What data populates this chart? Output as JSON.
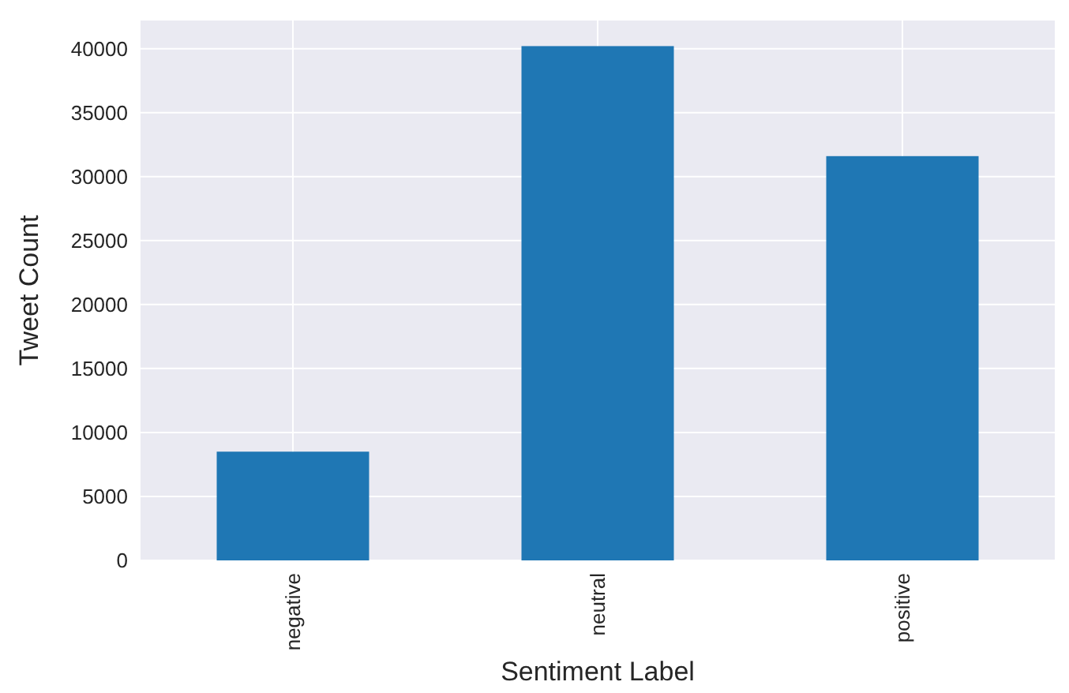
{
  "chart_data": {
    "type": "bar",
    "xlabel": "Sentiment Label",
    "ylabel": "Tweet Count",
    "categories": [
      "negative",
      "neutral",
      "positive"
    ],
    "values": [
      8500,
      40200,
      31600
    ],
    "color": "#1f77b4",
    "ylim": [
      0,
      42200
    ],
    "yticks": [
      0,
      5000,
      10000,
      15000,
      20000,
      25000,
      30000,
      35000,
      40000
    ],
    "grid": true
  }
}
